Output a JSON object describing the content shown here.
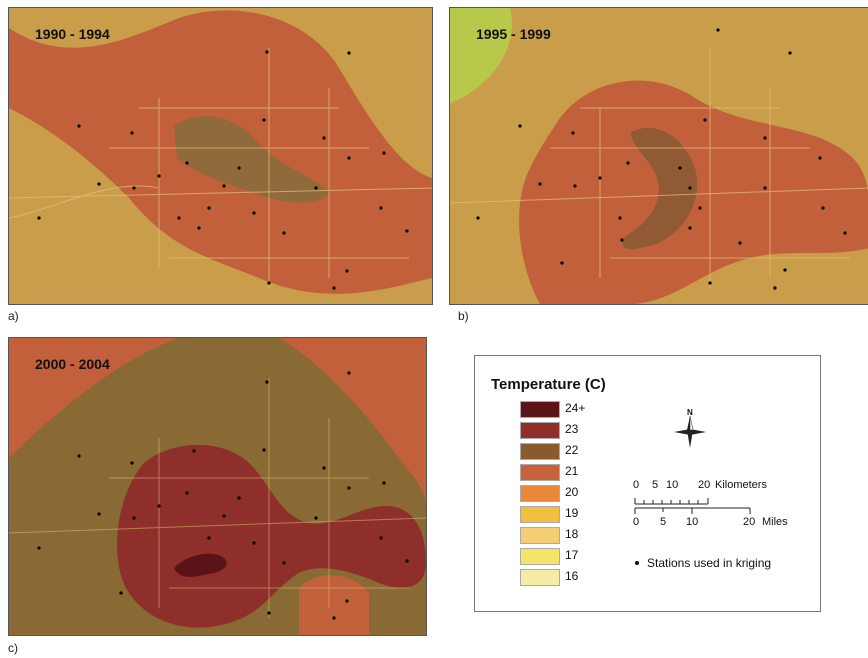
{
  "panels": [
    {
      "id": "a",
      "label": "a)",
      "period": "1990 - 1994"
    },
    {
      "id": "b",
      "label": "b)",
      "period": "1995 - 1999"
    },
    {
      "id": "c",
      "label": "c)",
      "period": "2000 - 2004"
    }
  ],
  "legend": {
    "title": "Temperature (C)",
    "classes": [
      {
        "label": "24+",
        "color": "#5a1418"
      },
      {
        "label": "23",
        "color": "#8e2f2c"
      },
      {
        "label": "22",
        "color": "#8a5a2c"
      },
      {
        "label": "21",
        "color": "#c8623a"
      },
      {
        "label": "20",
        "color": "#e8893a"
      },
      {
        "label": "19",
        "color": "#f2be3e"
      },
      {
        "label": "18",
        "color": "#f4cc74"
      },
      {
        "label": "17",
        "color": "#f4e46a"
      },
      {
        "label": "16",
        "color": "#f7eca6"
      }
    ],
    "north_label": "N",
    "scale_km_ticks": [
      "0",
      "5",
      "10",
      "20"
    ],
    "scale_km_unit": "Kilometers",
    "scale_mi_ticks": [
      "0",
      "5",
      "10",
      "20"
    ],
    "scale_mi_unit": "Miles",
    "stations_label": "Stations used in kriging"
  },
  "colors": {
    "panel_a_base": "#c99d4a",
    "panel_a_zone": "#c2603c",
    "panel_a_core": "#8f6a3a",
    "panel_b_base": "#c99d4a",
    "panel_b_zone": "#c2603c",
    "panel_b_core": "#8f5a34",
    "panel_c_base": "#c2603c",
    "panel_c_zone": "#8a6a34",
    "panel_c_core": "#8e2f2c"
  }
}
